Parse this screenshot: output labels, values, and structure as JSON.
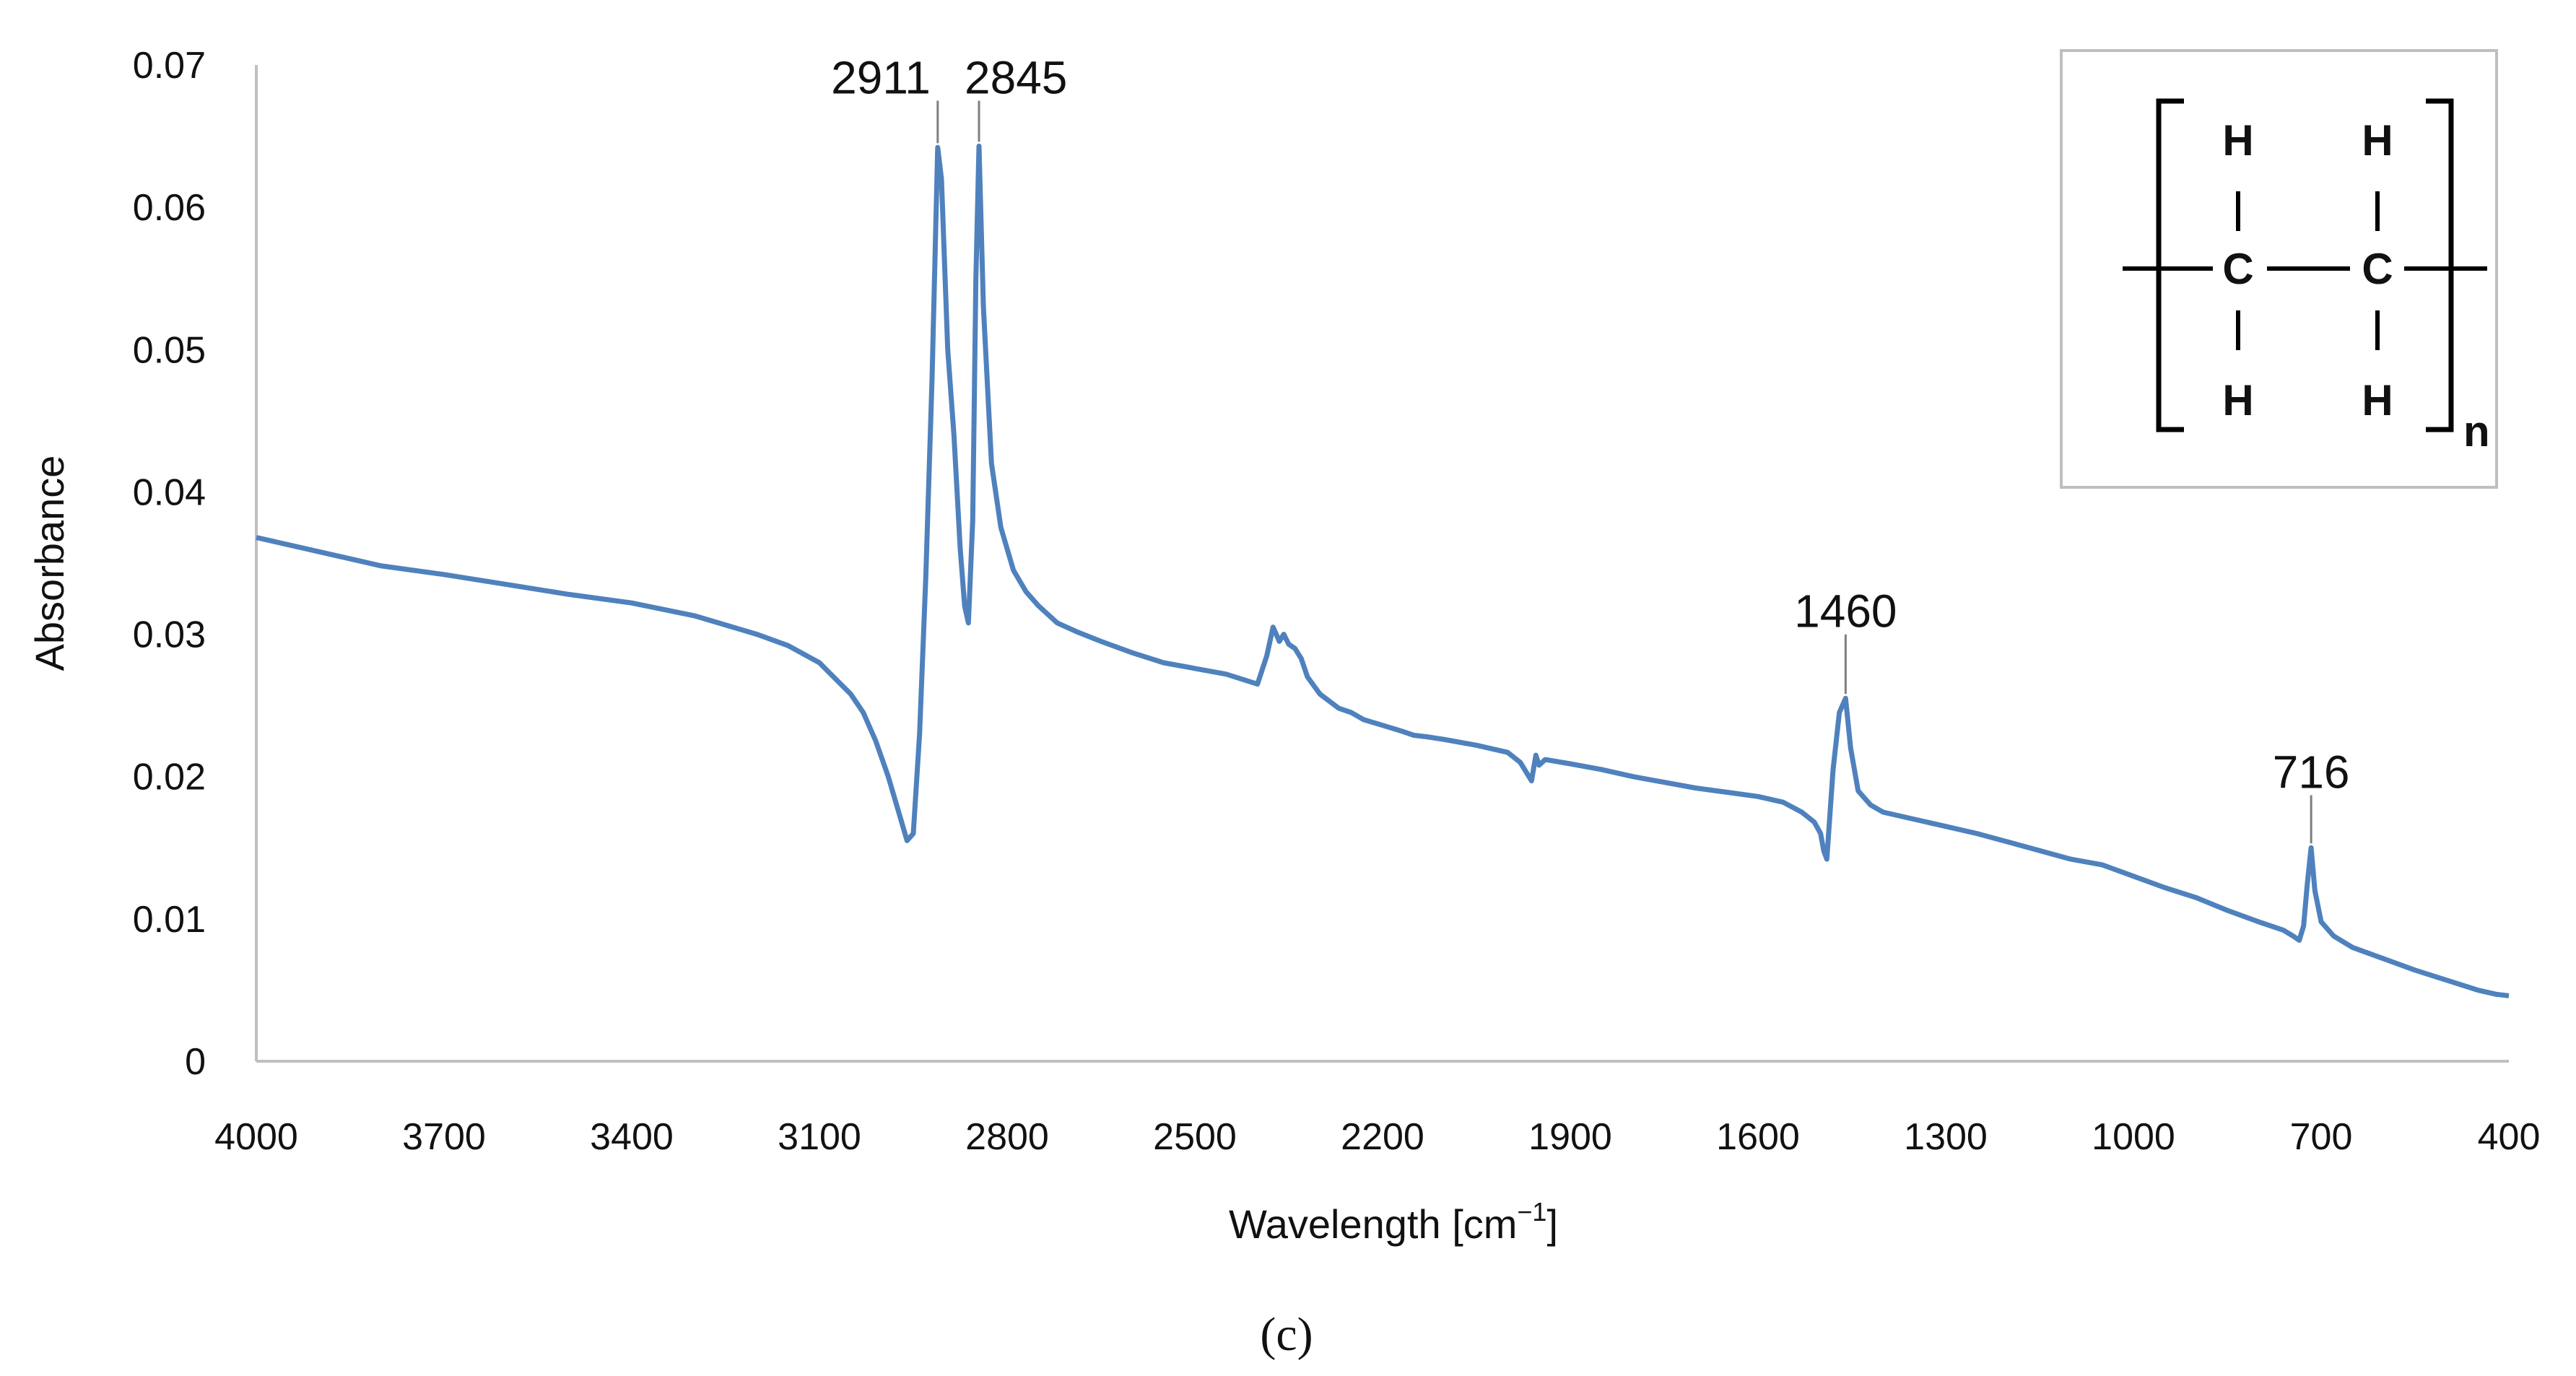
{
  "chart_data": {
    "type": "line",
    "title": "",
    "xlabel": "Wavelength [cm",
    "xlabel_sup": "−1",
    "xlabel_close": "]",
    "ylabel": "Absorbance",
    "xlim": [
      4000,
      400
    ],
    "ylim": [
      0,
      0.07
    ],
    "x_ticks": [
      "4000",
      "3700",
      "3400",
      "3100",
      "2800",
      "2500",
      "2200",
      "1900",
      "1600",
      "1300",
      "1000",
      "700",
      "400"
    ],
    "y_ticks": [
      "0",
      "0.01",
      "0.02",
      "0.03",
      "0.04",
      "0.05",
      "0.06",
      "0.07"
    ],
    "series": [
      {
        "name": "Absorbance",
        "color": "#4f81bd",
        "x": [
          4000,
          3900,
          3800,
          3700,
          3600,
          3500,
          3400,
          3300,
          3200,
          3150,
          3100,
          3050,
          3030,
          3010,
          2990,
          2970,
          2960,
          2950,
          2940,
          2930,
          2920,
          2911,
          2905,
          2895,
          2885,
          2875,
          2868,
          2862,
          2855,
          2850,
          2845,
          2838,
          2825,
          2810,
          2790,
          2770,
          2750,
          2720,
          2690,
          2650,
          2600,
          2550,
          2500,
          2450,
          2400,
          2385,
          2375,
          2365,
          2358,
          2350,
          2340,
          2330,
          2320,
          2300,
          2270,
          2250,
          2230,
          2200,
          2170,
          2150,
          2130,
          2100,
          2050,
          2000,
          1980,
          1962,
          1955,
          1950,
          1940,
          1900,
          1850,
          1800,
          1750,
          1700,
          1650,
          1600,
          1560,
          1530,
          1510,
          1500,
          1495,
          1490,
          1480,
          1470,
          1460,
          1452,
          1440,
          1420,
          1400,
          1350,
          1300,
          1250,
          1200,
          1150,
          1100,
          1050,
          1000,
          950,
          900,
          850,
          800,
          760,
          745,
          735,
          728,
          722,
          716,
          710,
          700,
          680,
          650,
          600,
          550,
          500,
          450,
          420,
          400
        ],
        "y": [
          0.0368,
          0.0358,
          0.0348,
          0.0342,
          0.0335,
          0.0328,
          0.0322,
          0.0313,
          0.03,
          0.0292,
          0.028,
          0.0258,
          0.0245,
          0.0225,
          0.02,
          0.017,
          0.0155,
          0.016,
          0.023,
          0.034,
          0.048,
          0.0642,
          0.062,
          0.05,
          0.044,
          0.036,
          0.032,
          0.0308,
          0.038,
          0.055,
          0.0643,
          0.053,
          0.042,
          0.0375,
          0.0345,
          0.033,
          0.032,
          0.0308,
          0.0302,
          0.0295,
          0.0287,
          0.028,
          0.0276,
          0.0272,
          0.0265,
          0.0285,
          0.0305,
          0.0295,
          0.03,
          0.0293,
          0.029,
          0.0283,
          0.027,
          0.0258,
          0.0248,
          0.0245,
          0.024,
          0.0236,
          0.0232,
          0.0229,
          0.0228,
          0.0226,
          0.0222,
          0.0217,
          0.021,
          0.0197,
          0.0215,
          0.0208,
          0.0212,
          0.0209,
          0.0205,
          0.02,
          0.0196,
          0.0192,
          0.0189,
          0.0186,
          0.0182,
          0.0175,
          0.0168,
          0.016,
          0.0148,
          0.0142,
          0.0205,
          0.0245,
          0.0255,
          0.022,
          0.019,
          0.018,
          0.0175,
          0.017,
          0.0165,
          0.016,
          0.0154,
          0.0148,
          0.0142,
          0.0138,
          0.013,
          0.0122,
          0.0115,
          0.0106,
          0.0098,
          0.0092,
          0.0088,
          0.0085,
          0.0095,
          0.0125,
          0.015,
          0.012,
          0.0098,
          0.0088,
          0.008,
          0.0072,
          0.0064,
          0.0057,
          0.005,
          0.0047,
          0.0046
        ]
      }
    ],
    "annotations": [
      {
        "label": "2911",
        "x": 2911,
        "y": 0.0642,
        "label_y": 0.068,
        "anchor": "end"
      },
      {
        "label": "2845",
        "x": 2845,
        "y": 0.0643,
        "label_y": 0.068,
        "anchor": "start"
      },
      {
        "label": "1460",
        "x": 1460,
        "y": 0.0255,
        "label_y": 0.0305,
        "anchor": "middle"
      },
      {
        "label": "716",
        "x": 716,
        "y": 0.015,
        "label_y": 0.0192,
        "anchor": "middle"
      }
    ],
    "grid": false,
    "legend": "none"
  },
  "inset": {
    "atoms": {
      "top_left": "H",
      "top_right": "H",
      "mid_left": "C",
      "mid_right": "C",
      "bot_left": "H",
      "bot_right": "H"
    },
    "subscript": "n"
  },
  "caption": "(c)"
}
